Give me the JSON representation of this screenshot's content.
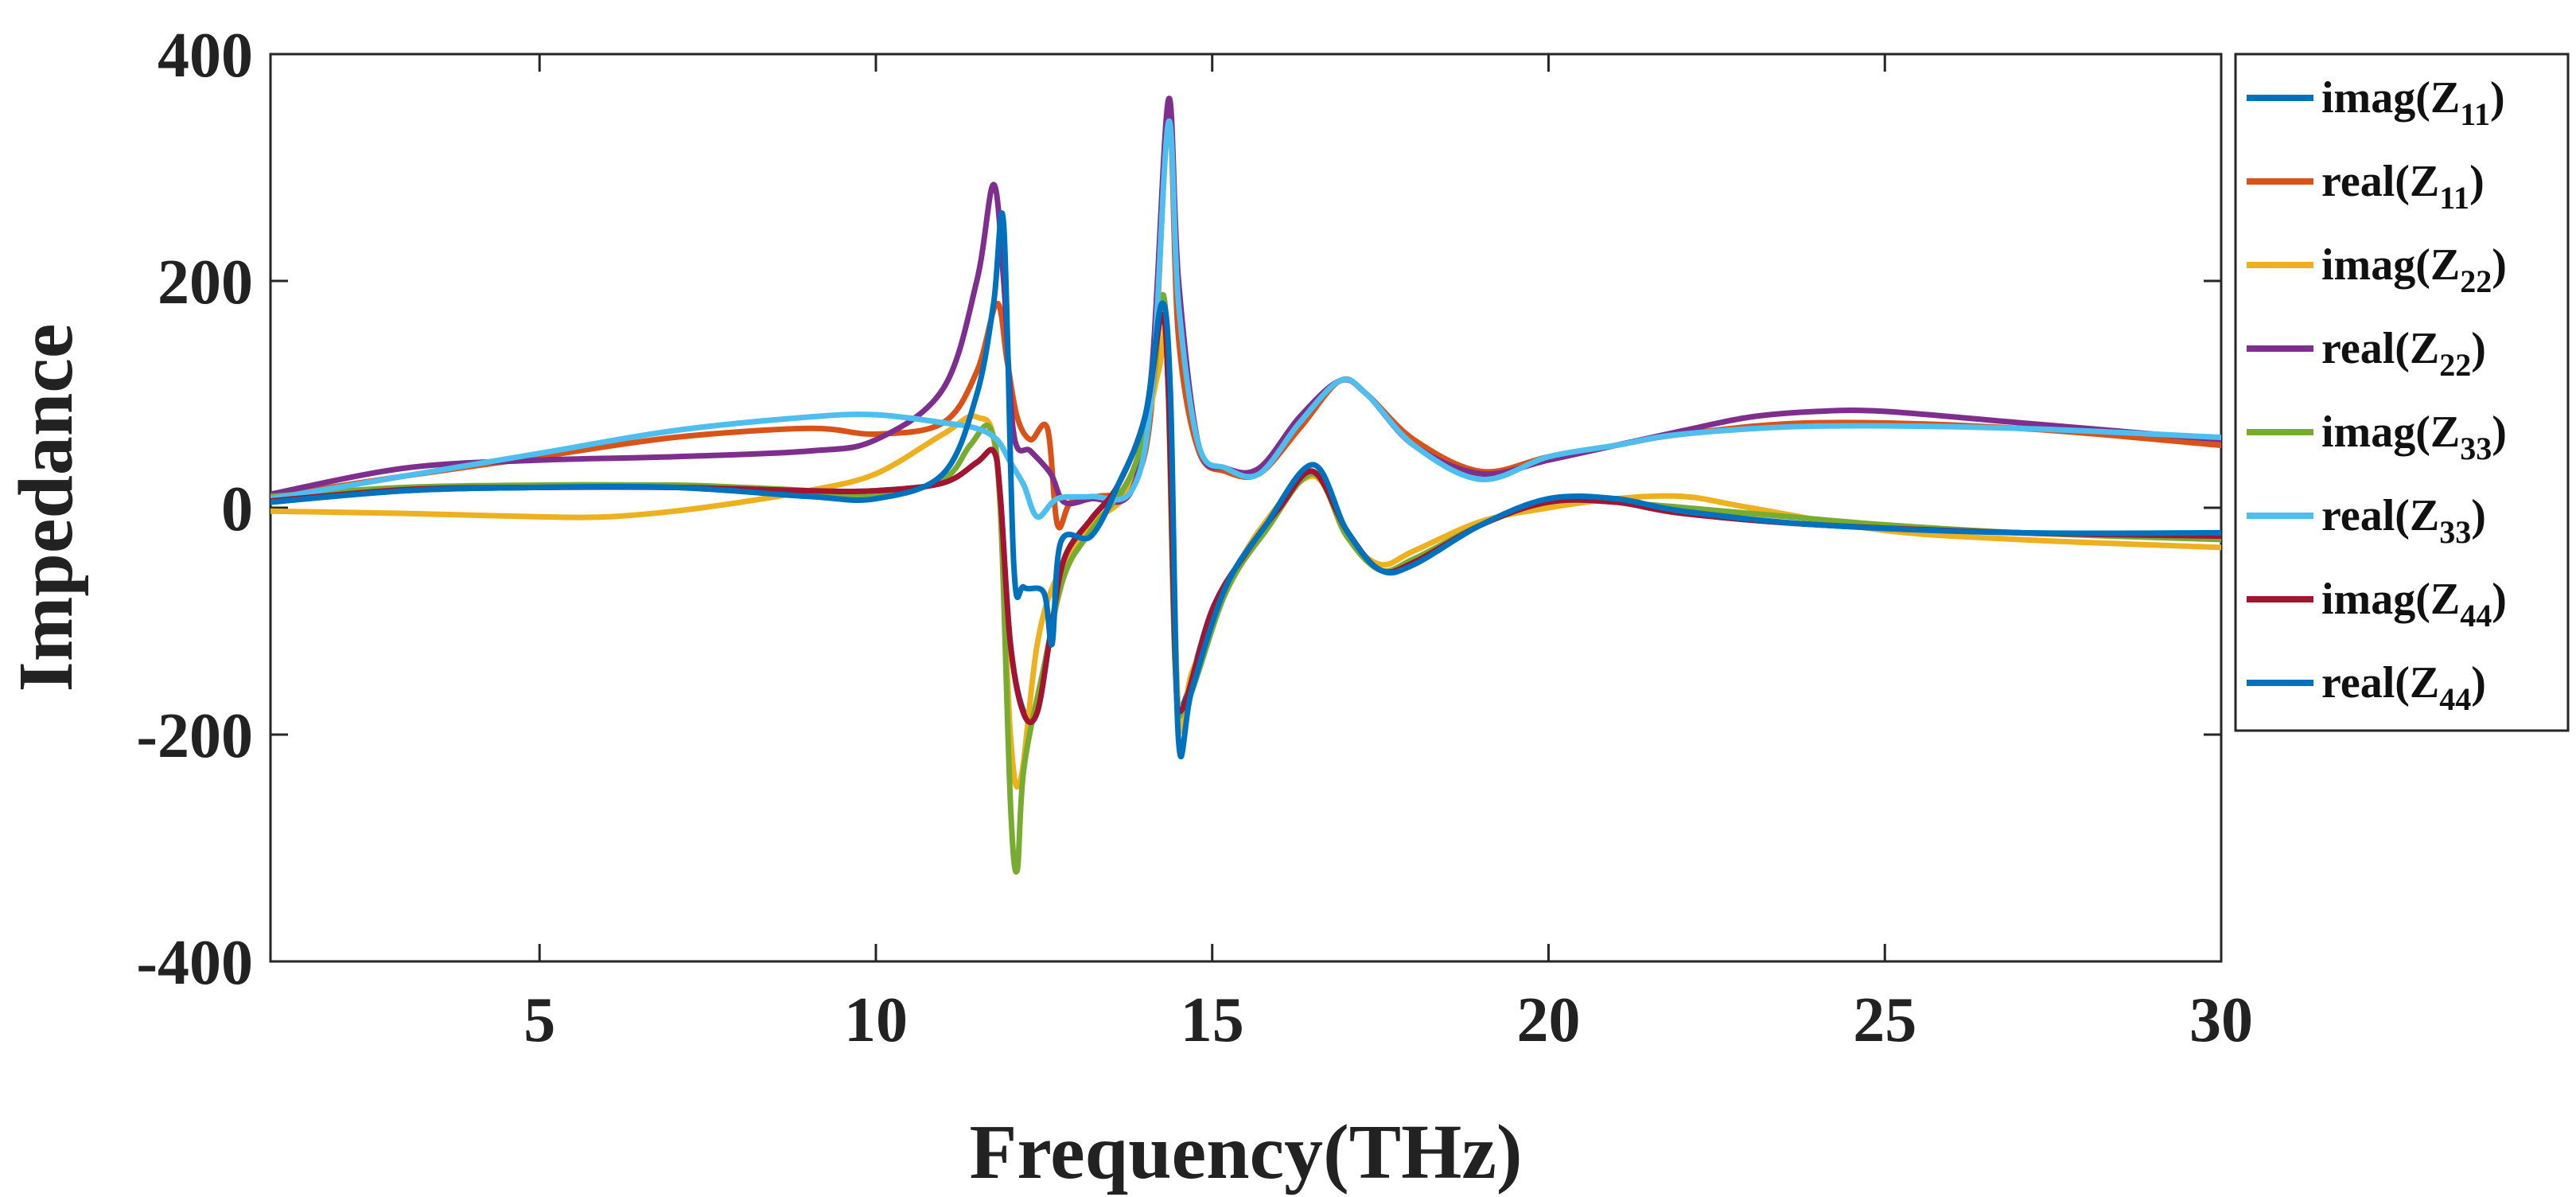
{
  "chart_data": {
    "type": "line",
    "title": "",
    "xlabel": "Frequency(THz)",
    "ylabel": "Impedance",
    "xlim": [
      1,
      30
    ],
    "ylim": [
      -400,
      400
    ],
    "x_ticks": [
      5,
      10,
      15,
      20,
      25,
      30
    ],
    "x_tick_labels": [
      "5",
      "10",
      "15",
      "20",
      "25",
      "30"
    ],
    "y_ticks": [
      -400,
      -200,
      0,
      200,
      400
    ],
    "y_tick_labels": [
      "-400",
      "-200",
      "0",
      "200",
      "400"
    ],
    "grid": false,
    "legend_position": "outside-right",
    "series": [
      {
        "name": "imag(Z11)",
        "label_main": "imag(Z",
        "label_sub": "11",
        "label_end": ")",
        "color": "#0072BD",
        "points": [
          [
            1,
            5
          ],
          [
            3,
            15
          ],
          [
            5,
            18
          ],
          [
            7,
            18
          ],
          [
            9,
            15
          ],
          [
            10,
            15
          ],
          [
            11,
            22
          ],
          [
            11.5,
            40
          ],
          [
            11.75,
            50
          ],
          [
            11.85,
            10
          ],
          [
            12.0,
            -120
          ],
          [
            12.2,
            -180
          ],
          [
            12.4,
            -180
          ],
          [
            12.6,
            -110
          ],
          [
            12.8,
            -45
          ],
          [
            13.2,
            -10
          ],
          [
            13.6,
            20
          ],
          [
            14.0,
            80
          ],
          [
            14.25,
            170
          ],
          [
            14.35,
            100
          ],
          [
            14.45,
            -130
          ],
          [
            14.55,
            -175
          ],
          [
            15,
            -90
          ],
          [
            15.5,
            -40
          ],
          [
            16,
            0
          ],
          [
            16.5,
            32
          ],
          [
            17,
            -20
          ],
          [
            17.5,
            -55
          ],
          [
            18,
            -48
          ],
          [
            19,
            -15
          ],
          [
            20,
            5
          ],
          [
            21,
            5
          ],
          [
            22,
            -5
          ],
          [
            24,
            -15
          ],
          [
            27,
            -22
          ],
          [
            30,
            -25
          ]
        ]
      },
      {
        "name": "real(Z11)",
        "label_main": "real(Z",
        "label_sub": "11",
        "label_end": ")",
        "color": "#D95319",
        "points": [
          [
            1,
            10
          ],
          [
            3,
            28
          ],
          [
            5,
            45
          ],
          [
            7,
            62
          ],
          [
            9,
            70
          ],
          [
            10,
            65
          ],
          [
            11,
            75
          ],
          [
            11.5,
            120
          ],
          [
            11.8,
            180
          ],
          [
            11.95,
            130
          ],
          [
            12.1,
            80
          ],
          [
            12.3,
            60
          ],
          [
            12.55,
            70
          ],
          [
            12.7,
            -15
          ],
          [
            12.9,
            5
          ],
          [
            13.3,
            10
          ],
          [
            13.8,
            20
          ],
          [
            14.1,
            90
          ],
          [
            14.35,
            345
          ],
          [
            14.5,
            150
          ],
          [
            14.8,
            50
          ],
          [
            15.2,
            32
          ],
          [
            15.7,
            30
          ],
          [
            16.3,
            70
          ],
          [
            16.9,
            112
          ],
          [
            17.3,
            100
          ],
          [
            18,
            60
          ],
          [
            19,
            32
          ],
          [
            20,
            45
          ],
          [
            21,
            55
          ],
          [
            22,
            65
          ],
          [
            24,
            75
          ],
          [
            27,
            70
          ],
          [
            30,
            55
          ]
        ]
      },
      {
        "name": "imag(Z22)",
        "label_main": "imag(Z",
        "label_sub": "22",
        "label_end": ")",
        "color": "#EDB120",
        "points": [
          [
            1,
            -3
          ],
          [
            3,
            -5
          ],
          [
            5,
            -8
          ],
          [
            6,
            -8
          ],
          [
            7,
            -3
          ],
          [
            8,
            5
          ],
          [
            9,
            15
          ],
          [
            10,
            30
          ],
          [
            11,
            65
          ],
          [
            11.5,
            80
          ],
          [
            11.8,
            40
          ],
          [
            12.0,
            -200
          ],
          [
            12.15,
            -240
          ],
          [
            12.4,
            -120
          ],
          [
            12.7,
            -60
          ],
          [
            13.2,
            -15
          ],
          [
            13.8,
            20
          ],
          [
            14.2,
            120
          ],
          [
            14.35,
            140
          ],
          [
            14.5,
            -180
          ],
          [
            14.7,
            -145
          ],
          [
            15.2,
            -75
          ],
          [
            15.7,
            -20
          ],
          [
            16.5,
            28
          ],
          [
            17,
            -25
          ],
          [
            17.5,
            -50
          ],
          [
            18,
            -38
          ],
          [
            19,
            -12
          ],
          [
            20,
            0
          ],
          [
            21,
            8
          ],
          [
            22,
            10
          ],
          [
            23,
            0
          ],
          [
            25,
            -20
          ],
          [
            27,
            -28
          ],
          [
            30,
            -35
          ]
        ]
      },
      {
        "name": "real(Z22)",
        "label_main": "real(Z",
        "label_sub": "22",
        "label_end": ")",
        "color": "#7E2F8E",
        "points": [
          [
            1,
            12
          ],
          [
            3,
            35
          ],
          [
            5,
            42
          ],
          [
            7,
            45
          ],
          [
            9,
            50
          ],
          [
            10,
            60
          ],
          [
            11,
            105
          ],
          [
            11.5,
            200
          ],
          [
            11.75,
            285
          ],
          [
            11.9,
            200
          ],
          [
            12.05,
            65
          ],
          [
            12.3,
            50
          ],
          [
            12.6,
            30
          ],
          [
            12.8,
            5
          ],
          [
            13.2,
            8
          ],
          [
            13.8,
            15
          ],
          [
            14.1,
            120
          ],
          [
            14.35,
            360
          ],
          [
            14.5,
            200
          ],
          [
            14.8,
            55
          ],
          [
            15.2,
            35
          ],
          [
            15.7,
            35
          ],
          [
            16.3,
            80
          ],
          [
            16.9,
            112
          ],
          [
            17.3,
            100
          ],
          [
            18,
            55
          ],
          [
            19,
            30
          ],
          [
            20,
            42
          ],
          [
            21,
            55
          ],
          [
            22,
            68
          ],
          [
            23,
            80
          ],
          [
            24,
            85
          ],
          [
            25,
            85
          ],
          [
            27,
            75
          ],
          [
            30,
            60
          ]
        ]
      },
      {
        "name": "imag(Z33)",
        "label_main": "imag(Z",
        "label_sub": "33",
        "label_end": ")",
        "color": "#77AC30",
        "points": [
          [
            1,
            10
          ],
          [
            3,
            18
          ],
          [
            5,
            20
          ],
          [
            7,
            20
          ],
          [
            8,
            18
          ],
          [
            9,
            15
          ],
          [
            10,
            10
          ],
          [
            11,
            25
          ],
          [
            11.4,
            55
          ],
          [
            11.7,
            70
          ],
          [
            11.85,
            0
          ],
          [
            12.0,
            -260
          ],
          [
            12.1,
            -320
          ],
          [
            12.2,
            -230
          ],
          [
            12.5,
            -140
          ],
          [
            12.8,
            -60
          ],
          [
            13.2,
            -20
          ],
          [
            13.8,
            30
          ],
          [
            14.1,
            100
          ],
          [
            14.3,
            178
          ],
          [
            14.45,
            -140
          ],
          [
            14.6,
            -175
          ],
          [
            15.2,
            -75
          ],
          [
            15.8,
            -20
          ],
          [
            16.5,
            30
          ],
          [
            17,
            -25
          ],
          [
            17.5,
            -55
          ],
          [
            18,
            -45
          ],
          [
            19,
            -15
          ],
          [
            20,
            5
          ],
          [
            21,
            5
          ],
          [
            23,
            -5
          ],
          [
            25,
            -15
          ],
          [
            27,
            -22
          ],
          [
            30,
            -28
          ]
        ]
      },
      {
        "name": "real(Z33)",
        "label_main": "real(Z",
        "label_sub": "33",
        "label_end": ")",
        "color": "#4DBEEE",
        "points": [
          [
            1,
            8
          ],
          [
            3,
            28
          ],
          [
            5,
            48
          ],
          [
            7,
            68
          ],
          [
            9,
            80
          ],
          [
            10,
            82
          ],
          [
            11,
            75
          ],
          [
            11.5,
            70
          ],
          [
            11.8,
            60
          ],
          [
            12.0,
            40
          ],
          [
            12.2,
            20
          ],
          [
            12.4,
            -8
          ],
          [
            12.7,
            8
          ],
          [
            13.2,
            10
          ],
          [
            13.8,
            15
          ],
          [
            14.1,
            100
          ],
          [
            14.35,
            340
          ],
          [
            14.5,
            180
          ],
          [
            14.8,
            55
          ],
          [
            15.2,
            35
          ],
          [
            15.7,
            30
          ],
          [
            16.3,
            75
          ],
          [
            16.9,
            112
          ],
          [
            17.3,
            100
          ],
          [
            18,
            55
          ],
          [
            19,
            25
          ],
          [
            20,
            45
          ],
          [
            21,
            55
          ],
          [
            22,
            65
          ],
          [
            24,
            72
          ],
          [
            27,
            70
          ],
          [
            30,
            62
          ]
        ]
      },
      {
        "name": "imag(Z44)",
        "label_main": "imag(Z",
        "label_sub": "44",
        "label_end": ")",
        "color": "#A2142F",
        "points": [
          [
            1,
            6
          ],
          [
            3,
            16
          ],
          [
            5,
            18
          ],
          [
            7,
            18
          ],
          [
            9,
            15
          ],
          [
            10,
            15
          ],
          [
            11,
            22
          ],
          [
            11.5,
            40
          ],
          [
            11.75,
            50
          ],
          [
            11.85,
            10
          ],
          [
            12.0,
            -120
          ],
          [
            12.2,
            -182
          ],
          [
            12.4,
            -180
          ],
          [
            12.6,
            -110
          ],
          [
            12.8,
            -45
          ],
          [
            13.2,
            -10
          ],
          [
            13.6,
            20
          ],
          [
            14.0,
            80
          ],
          [
            14.25,
            170
          ],
          [
            14.35,
            100
          ],
          [
            14.45,
            -130
          ],
          [
            14.55,
            -178
          ],
          [
            15,
            -90
          ],
          [
            15.5,
            -40
          ],
          [
            16,
            0
          ],
          [
            16.5,
            32
          ],
          [
            17,
            -20
          ],
          [
            17.5,
            -55
          ],
          [
            18,
            -48
          ],
          [
            19,
            -15
          ],
          [
            20,
            5
          ],
          [
            21,
            5
          ],
          [
            22,
            -5
          ],
          [
            24,
            -15
          ],
          [
            27,
            -22
          ],
          [
            30,
            -25
          ]
        ]
      },
      {
        "name": "real(Z44)",
        "label_main": "real(Z",
        "label_sub": "44",
        "label_end": ")",
        "color": "#0072BD",
        "points": [
          [
            1,
            5
          ],
          [
            3,
            15
          ],
          [
            5,
            18
          ],
          [
            7,
            18
          ],
          [
            9,
            10
          ],
          [
            10,
            8
          ],
          [
            11,
            30
          ],
          [
            11.5,
            100
          ],
          [
            11.75,
            180
          ],
          [
            11.9,
            250
          ],
          [
            12.05,
            -50
          ],
          [
            12.2,
            -70
          ],
          [
            12.5,
            -75
          ],
          [
            12.62,
            -120
          ],
          [
            12.75,
            -30
          ],
          [
            13.2,
            -25
          ],
          [
            13.6,
            20
          ],
          [
            14.0,
            80
          ],
          [
            14.25,
            180
          ],
          [
            14.38,
            100
          ],
          [
            14.5,
            -205
          ],
          [
            14.7,
            -160
          ],
          [
            15.2,
            -70
          ],
          [
            15.8,
            -15
          ],
          [
            16.5,
            38
          ],
          [
            17,
            -20
          ],
          [
            17.5,
            -55
          ],
          [
            18,
            -50
          ],
          [
            19,
            -15
          ],
          [
            20,
            8
          ],
          [
            21,
            8
          ],
          [
            22,
            -3
          ],
          [
            24,
            -15
          ],
          [
            27,
            -22
          ],
          [
            30,
            -22
          ]
        ]
      }
    ]
  }
}
